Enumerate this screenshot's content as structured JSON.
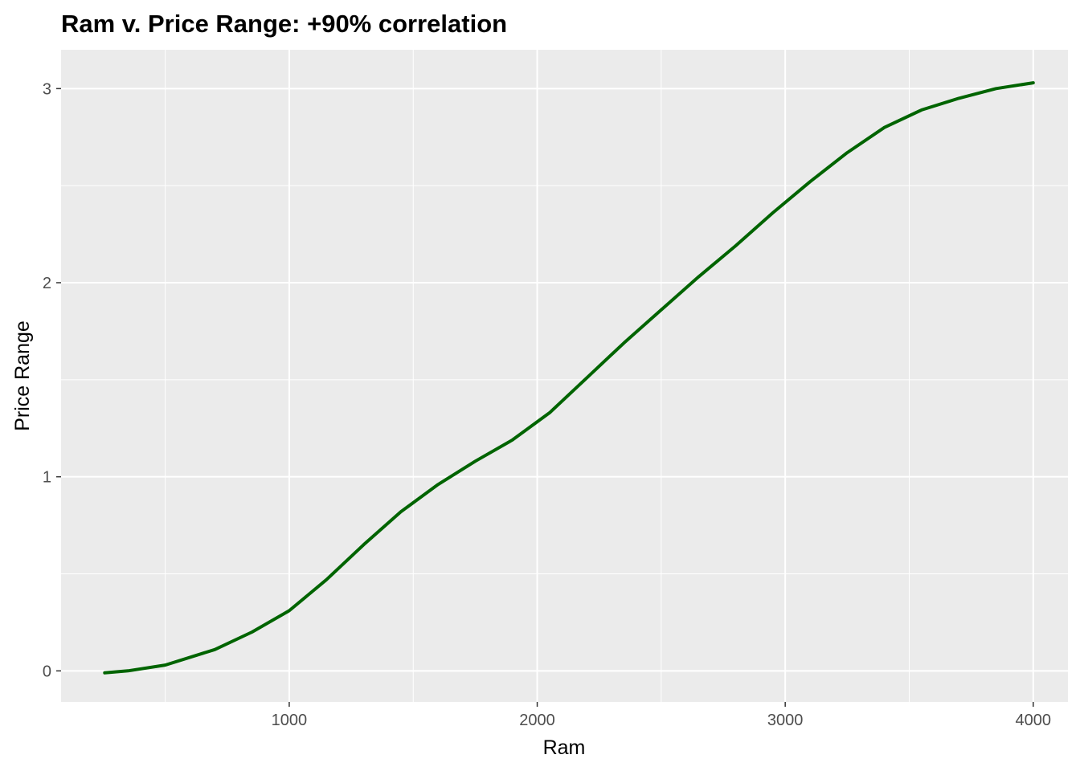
{
  "chart_data": {
    "type": "line",
    "title": "Ram v. Price Range: +90% correlation",
    "xlabel": "Ram",
    "ylabel": "Price Range",
    "xlim": [
      80,
      4140
    ],
    "ylim": [
      -0.16,
      3.2
    ],
    "x_ticks": [
      1000,
      2000,
      3000,
      4000
    ],
    "x_tick_labels": [
      "1000",
      "2000",
      "3000",
      "4000"
    ],
    "x_minor_ticks": [
      500,
      1500,
      2500,
      3500
    ],
    "y_ticks": [
      0,
      1,
      2,
      3
    ],
    "y_tick_labels": [
      "0",
      "1",
      "2",
      "3"
    ],
    "y_minor_ticks": [
      0.5,
      1.5,
      2.5
    ],
    "grid": true,
    "panel_background": "#ebebeb",
    "grid_color": "#ffffff",
    "series": [
      {
        "color": "#006400",
        "x": [
          256,
          350,
          500,
          700,
          850,
          1000,
          1150,
          1300,
          1450,
          1600,
          1750,
          1900,
          2050,
          2200,
          2350,
          2500,
          2650,
          2800,
          2950,
          3100,
          3250,
          3400,
          3550,
          3700,
          3850,
          4000
        ],
        "y": [
          -0.01,
          0.0,
          0.03,
          0.11,
          0.2,
          0.31,
          0.47,
          0.65,
          0.82,
          0.96,
          1.08,
          1.19,
          1.33,
          1.51,
          1.69,
          1.86,
          2.03,
          2.19,
          2.36,
          2.52,
          2.67,
          2.8,
          2.89,
          2.95,
          3.0,
          3.03
        ]
      }
    ]
  }
}
